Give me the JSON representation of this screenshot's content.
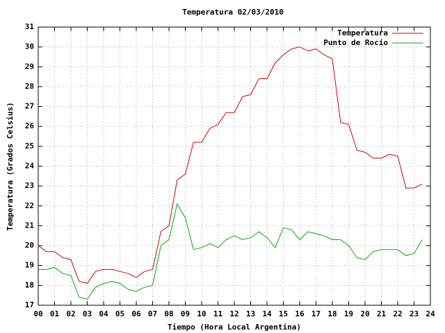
{
  "chart_data": {
    "type": "line",
    "title": "Temperatura 02/03/2010",
    "xlabel": "Tiempo (Hora Local Argentina)",
    "ylabel": "Temperatura (Grados Celsius)",
    "x": [
      0,
      0.5,
      1,
      1.5,
      2,
      2.5,
      3,
      3.5,
      4,
      4.5,
      5,
      5.5,
      6,
      6.5,
      7,
      7.5,
      8,
      8.5,
      9,
      9.5,
      10,
      10.5,
      11,
      11.5,
      12,
      12.5,
      13,
      13.5,
      14,
      14.5,
      15,
      15.5,
      16,
      16.5,
      17,
      17.5,
      18,
      18.5,
      19,
      19.5,
      20,
      20.5,
      21,
      21.5,
      22,
      22.5,
      23,
      23.5
    ],
    "series": [
      {
        "name": "Temperatura",
        "color": "#cc0000",
        "values": [
          20.0,
          19.7,
          19.7,
          19.4,
          19.3,
          18.2,
          18.1,
          18.7,
          18.8,
          18.8,
          18.7,
          18.6,
          18.4,
          18.7,
          18.8,
          20.7,
          21.0,
          23.3,
          23.6,
          25.2,
          25.2,
          25.9,
          26.1,
          26.7,
          26.7,
          27.5,
          27.6,
          28.4,
          28.4,
          29.2,
          29.6,
          29.9,
          30.0,
          29.8,
          29.9,
          29.6,
          29.4,
          26.2,
          26.1,
          24.8,
          24.7,
          24.4,
          24.4,
          24.6,
          24.5,
          22.9,
          22.9,
          23.1
        ]
      },
      {
        "name": "Punto de Rocío",
        "color": "#00aa00",
        "values": [
          18.8,
          18.8,
          18.9,
          18.6,
          18.5,
          17.4,
          17.3,
          17.9,
          18.1,
          18.2,
          18.1,
          17.8,
          17.7,
          17.9,
          18.0,
          20.0,
          20.3,
          22.1,
          21.4,
          19.8,
          19.9,
          20.1,
          19.9,
          20.3,
          20.5,
          20.3,
          20.4,
          20.7,
          20.4,
          19.9,
          20.9,
          20.8,
          20.3,
          20.7,
          20.6,
          20.5,
          20.3,
          20.3,
          20.0,
          19.4,
          19.3,
          19.7,
          19.8,
          19.8,
          19.8,
          19.5,
          19.6,
          20.3
        ]
      }
    ],
    "xlim": [
      0,
      24
    ],
    "xticks": [
      {
        "value": 0,
        "label": "00"
      },
      {
        "value": 1,
        "label": "01"
      },
      {
        "value": 2,
        "label": "02"
      },
      {
        "value": 3,
        "label": "03"
      },
      {
        "value": 4,
        "label": "04"
      },
      {
        "value": 5,
        "label": "05"
      },
      {
        "value": 6,
        "label": "06"
      },
      {
        "value": 7,
        "label": "07"
      },
      {
        "value": 8,
        "label": "08"
      },
      {
        "value": 9,
        "label": "09"
      },
      10,
      11,
      12,
      13,
      14,
      15,
      16,
      17,
      18,
      19,
      20,
      21,
      22,
      23,
      24
    ],
    "ylim": [
      17,
      31
    ],
    "yticks": [
      17,
      18,
      19,
      20,
      21,
      22,
      23,
      24,
      25,
      26,
      27,
      28,
      29,
      30,
      31
    ],
    "grid": true,
    "legend": "top right"
  }
}
